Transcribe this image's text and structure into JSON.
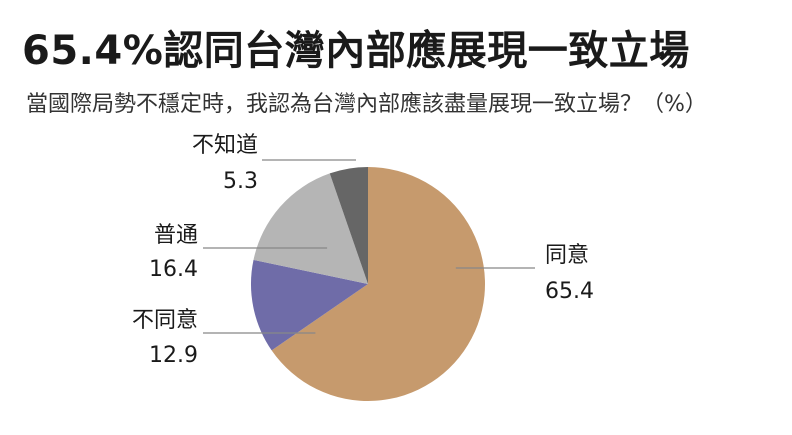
{
  "title": "65.4%認同台灣內部應展現一致立場",
  "subtitle": "當國際局勢不穩定時，我認為台灣內部應該盡量展現一致立場？（%）",
  "chart_data": {
    "type": "pie",
    "start_angle_deg": 0,
    "direction": "clockwise",
    "slices": [
      {
        "label": "同意",
        "value": 65.4,
        "color": "#c69a6d"
      },
      {
        "label": "不同意",
        "value": 12.9,
        "color": "#6f6ca8"
      },
      {
        "label": "普通",
        "value": 16.4,
        "color": "#b5b5b5"
      },
      {
        "label": "不知道",
        "value": 5.3,
        "color": "#666666"
      }
    ]
  }
}
